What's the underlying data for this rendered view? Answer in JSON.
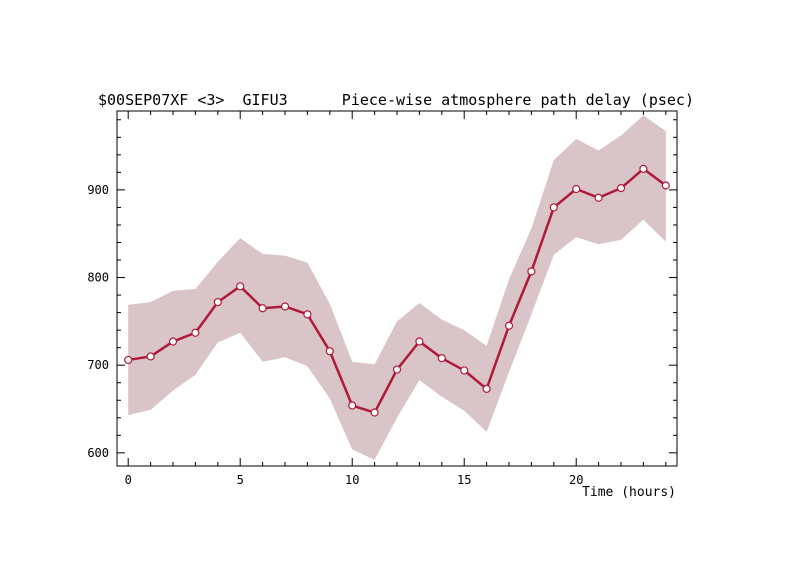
{
  "chart_data": {
    "type": "line",
    "title_left": "$00SEP07XF <3>  GIFU3",
    "title_right": "Piece-wise atmosphere path delay (psec)",
    "xlabel": "Time (hours)",
    "ylabel": "",
    "xlim": [
      -0.5,
      24.5
    ],
    "ylim": [
      585,
      990
    ],
    "x_ticks": [
      0,
      5,
      10,
      15,
      20
    ],
    "y_ticks": [
      600,
      700,
      800,
      900
    ],
    "grid": false,
    "colors": {
      "line": "#b01a3a",
      "band": "#d9c4c8",
      "marker_fill": "#ffffff"
    },
    "series": [
      {
        "x": [
          0,
          1,
          2,
          3,
          4,
          5,
          6,
          7,
          8,
          9,
          10,
          11,
          12,
          13,
          14,
          15,
          16,
          17,
          18,
          19,
          20,
          21,
          22,
          23,
          24
        ],
        "y": [
          706,
          710,
          727,
          737,
          772,
          790,
          765,
          767,
          758,
          716,
          654,
          646,
          695,
          727,
          708,
          694,
          673,
          745,
          807,
          880,
          901,
          891,
          902,
          924,
          905
        ],
        "band_upper": [
          769,
          772,
          785,
          787,
          818,
          845,
          827,
          825,
          817,
          770,
          704,
          701,
          750,
          771,
          752,
          740,
          722,
          798,
          856,
          934,
          958,
          945,
          962,
          985,
          967
        ],
        "band_lower": [
          643,
          649,
          671,
          689,
          726,
          737,
          704,
          709,
          699,
          662,
          604,
          592,
          640,
          683,
          664,
          648,
          624,
          692,
          758,
          826,
          846,
          838,
          843,
          866,
          841
        ]
      }
    ]
  }
}
